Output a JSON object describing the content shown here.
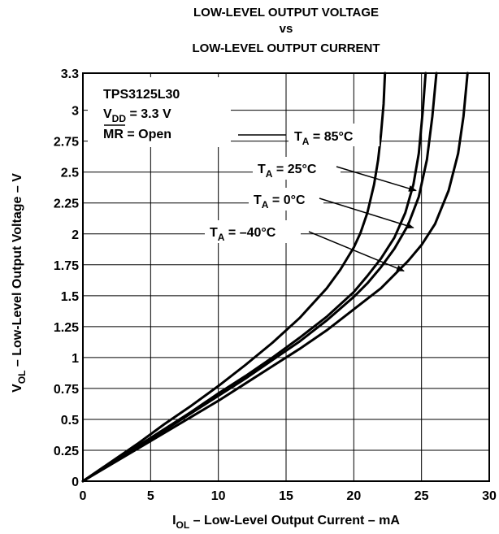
{
  "chart_data": {
    "type": "line",
    "title": [
      "LOW-LEVEL OUTPUT VOLTAGE",
      "vs",
      "LOW-LEVEL OUTPUT CURRENT"
    ],
    "xlabel": {
      "main": "I",
      "sub": "OL",
      "rest": " – Low-Level Output Current – mA"
    },
    "ylabel": {
      "main": "V",
      "sub": "OL",
      "rest": " – Low-Level Output Voltage – V"
    },
    "xlim": [
      0,
      30
    ],
    "ylim": [
      0,
      3.3
    ],
    "x_ticks": [
      {
        "value": 0,
        "label": "0"
      },
      {
        "value": 5,
        "label": "5"
      },
      {
        "value": 10,
        "label": "10"
      },
      {
        "value": 15,
        "label": "15"
      },
      {
        "value": 20,
        "label": "20"
      },
      {
        "value": 25,
        "label": "25"
      },
      {
        "value": 30,
        "label": "30"
      }
    ],
    "y_ticks": [
      {
        "value": 0,
        "label": "0"
      },
      {
        "value": 0.25,
        "label": "0.25"
      },
      {
        "value": 0.5,
        "label": "0.5"
      },
      {
        "value": 0.75,
        "label": "0.75"
      },
      {
        "value": 1,
        "label": "1"
      },
      {
        "value": 1.25,
        "label": "1.25"
      },
      {
        "value": 1.5,
        "label": "1.5"
      },
      {
        "value": 1.75,
        "label": "1.75"
      },
      {
        "value": 2,
        "label": "2"
      },
      {
        "value": 2.25,
        "label": "2.25"
      },
      {
        "value": 2.5,
        "label": "2.5"
      },
      {
        "value": 2.75,
        "label": "2.75"
      },
      {
        "value": 3,
        "label": "3"
      },
      {
        "value": 3.3,
        "label": "3.3"
      }
    ],
    "grid": true,
    "conditions": {
      "device": "TPS3125L30",
      "vdd": {
        "main": "V",
        "sub": "DD",
        "rest": " = 3.3 V"
      },
      "mr": {
        "overline": "MR",
        "rest": " = Open"
      }
    },
    "series": [
      {
        "name": "T_A = 85°C",
        "label": {
          "main": "T",
          "sub": "A",
          "rest": " = 85°C"
        },
        "x": [
          0,
          2,
          4,
          6,
          8,
          10,
          12,
          14,
          16,
          18,
          19,
          20,
          20.5,
          21,
          21.5,
          21.8,
          22,
          22.2,
          22.3
        ],
        "y": [
          0,
          0.15,
          0.3,
          0.46,
          0.61,
          0.77,
          0.94,
          1.12,
          1.32,
          1.56,
          1.71,
          1.89,
          2.01,
          2.17,
          2.4,
          2.6,
          2.8,
          3.05,
          3.3
        ]
      },
      {
        "name": "T_A = 25°C",
        "label": {
          "main": "T",
          "sub": "A",
          "rest": " = 25°C"
        },
        "x": [
          0,
          2,
          4,
          6,
          8,
          10,
          12,
          14,
          16,
          18,
          20,
          21,
          22,
          23,
          23.8,
          24.4,
          24.8,
          25.1,
          25.3
        ],
        "y": [
          0,
          0.14,
          0.28,
          0.42,
          0.56,
          0.71,
          0.85,
          1.0,
          1.16,
          1.33,
          1.53,
          1.66,
          1.8,
          1.97,
          2.17,
          2.4,
          2.65,
          3.0,
          3.3
        ]
      },
      {
        "name": "T_A = 0°C",
        "label": {
          "main": "T",
          "sub": "A",
          "rest": " = 0°C"
        },
        "x": [
          0,
          2,
          4,
          6,
          8,
          10,
          12,
          14,
          16,
          18,
          20,
          21,
          22,
          23,
          24,
          24.8,
          25.4,
          25.8,
          26.1
        ],
        "y": [
          0,
          0.14,
          0.28,
          0.41,
          0.55,
          0.69,
          0.83,
          0.98,
          1.13,
          1.3,
          1.49,
          1.6,
          1.73,
          1.88,
          2.07,
          2.3,
          2.6,
          2.95,
          3.3
        ]
      },
      {
        "name": "T_A = –40°C",
        "label": {
          "main": "T",
          "sub": "A",
          "rest": " = –40°C"
        },
        "x": [
          0,
          2,
          4,
          6,
          8,
          10,
          12,
          14,
          16,
          18,
          20,
          22,
          24,
          25,
          26,
          27,
          27.7,
          28.1,
          28.4
        ],
        "y": [
          0,
          0.13,
          0.26,
          0.39,
          0.52,
          0.65,
          0.79,
          0.93,
          1.07,
          1.22,
          1.39,
          1.56,
          1.78,
          1.91,
          2.08,
          2.35,
          2.65,
          2.95,
          3.3
        ]
      }
    ],
    "annotation_targets": [
      {
        "series": "T_A = 85°C",
        "x": 22.2,
        "y": 2.62
      },
      {
        "series": "T_A = 25°C",
        "x": 24.6,
        "y": 2.35
      },
      {
        "series": "T_A = 0°C",
        "x": 24.4,
        "y": 2.05
      },
      {
        "series": "T_A = –40°C",
        "x": 23.7,
        "y": 1.7
      }
    ]
  }
}
